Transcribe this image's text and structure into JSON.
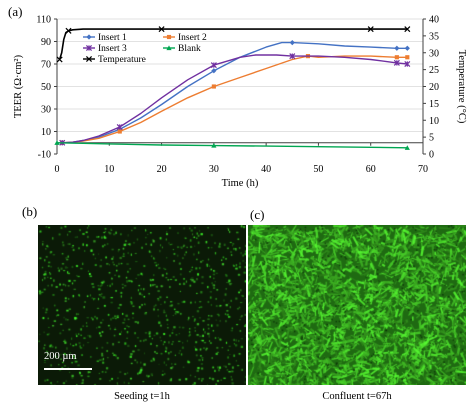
{
  "panel_labels": {
    "a": "(a)",
    "b": "(b)",
    "c": "(c)"
  },
  "chart_data": {
    "type": "line",
    "xlabel": "Time (h)",
    "ylabel_left": "TEER (Ω·cm²)",
    "ylabel_right": "Temperature (°C)",
    "xlim": [
      0,
      70
    ],
    "ylim_left": [
      -10,
      110
    ],
    "ylim_right": [
      0,
      40
    ],
    "xticks": [
      0,
      10,
      20,
      30,
      40,
      50,
      60,
      70
    ],
    "yticks_left": [
      -10,
      10,
      30,
      50,
      70,
      90,
      110
    ],
    "yticks_right": [
      0,
      5,
      10,
      15,
      20,
      25,
      30,
      35,
      40
    ],
    "legend_position": "upper-left",
    "series": [
      {
        "name": "Insert 1",
        "axis": "left",
        "color": "#4472C4",
        "marker": "diamond",
        "x": [
          1,
          3,
          5,
          8,
          12,
          16,
          20,
          25,
          30,
          35,
          40,
          43,
          45,
          50,
          55,
          60,
          65,
          67
        ],
        "y": [
          0,
          0.5,
          2,
          5,
          12,
          22,
          34,
          50,
          64,
          76,
          85,
          89,
          89,
          88,
          86,
          85,
          84,
          84
        ]
      },
      {
        "name": "Insert 2",
        "axis": "left",
        "color": "#ED7D31",
        "marker": "square",
        "x": [
          1,
          3,
          5,
          8,
          12,
          16,
          20,
          25,
          30,
          35,
          40,
          45,
          48,
          50,
          55,
          60,
          65,
          67
        ],
        "y": [
          0,
          0.5,
          1.5,
          4,
          10,
          18,
          28,
          40,
          50,
          58,
          66,
          74,
          77,
          76,
          77,
          77,
          76,
          76
        ]
      },
      {
        "name": "Insert 3",
        "axis": "left",
        "color": "#7030A0",
        "marker": "star",
        "x": [
          1,
          3,
          5,
          8,
          12,
          16,
          20,
          25,
          30,
          35,
          38,
          42,
          45,
          50,
          55,
          60,
          65,
          67
        ],
        "y": [
          0,
          0.5,
          2,
          6,
          14,
          26,
          40,
          56,
          69,
          76,
          78,
          78,
          77,
          77,
          76,
          74,
          71,
          70
        ]
      },
      {
        "name": "Blank",
        "axis": "left",
        "color": "#00A651",
        "marker": "triangle",
        "x": [
          0,
          5,
          10,
          20,
          30,
          40,
          50,
          60,
          67
        ],
        "y": [
          0,
          -0.5,
          -1,
          -2,
          -2.5,
          -3,
          -3.5,
          -4,
          -4.5
        ]
      },
      {
        "name": "Temperature",
        "axis": "right",
        "color": "#000000",
        "marker": "cross",
        "x": [
          0.5,
          0.9,
          1.3,
          1.7,
          2.2,
          3,
          5,
          10,
          20,
          30,
          40,
          50,
          60,
          67
        ],
        "y": [
          28,
          30,
          34,
          36,
          36.5,
          36.8,
          37,
          37,
          37,
          37,
          37,
          37,
          37,
          37
        ]
      }
    ]
  },
  "micrographs": {
    "b": {
      "caption": "Seeding t=1h",
      "scale_label": "200 µm"
    },
    "c": {
      "caption": "Confluent  t=67h"
    }
  }
}
